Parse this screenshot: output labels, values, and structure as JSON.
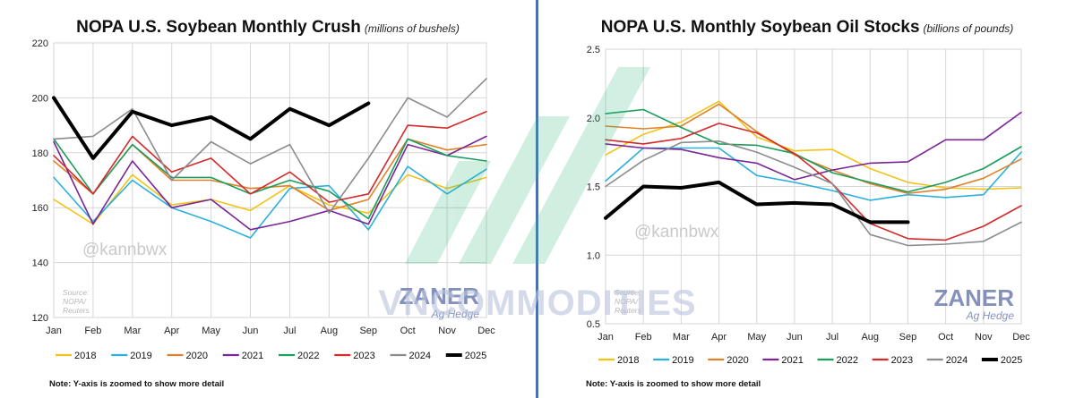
{
  "watermark": {
    "center_text": "VNCOMMODITIES"
  },
  "chart_data": [
    {
      "type": "line",
      "title": "NOPA U.S. Soybean Monthly Crush",
      "subtitle": "(millions of bushels)",
      "categories": [
        "Jan",
        "Feb",
        "Mar",
        "Apr",
        "May",
        "Jun",
        "Jul",
        "Aug",
        "Sep",
        "Oct",
        "Nov",
        "Dec"
      ],
      "ylim": [
        120,
        220
      ],
      "yticks": [
        "120",
        "140",
        "160",
        "180",
        "200",
        "220"
      ],
      "grid": true,
      "legend_position": "bottom",
      "handle": "@kannbwx",
      "source": [
        "Source:",
        "NOPA/",
        "Reuters"
      ],
      "brand": "ZANER",
      "brand_sub": "Ag Hedge",
      "note": "Note: Y-axis is zoomed to show more detail",
      "series": [
        {
          "name": "2018",
          "color": "#f2c317",
          "width": 1.6,
          "values": [
            163,
            154,
            172,
            161,
            163,
            159,
            168,
            161,
            158,
            172,
            167,
            171
          ]
        },
        {
          "name": "2019",
          "color": "#2ab0df",
          "width": 1.6,
          "values": [
            171,
            155,
            170,
            160,
            155,
            149,
            167,
            168,
            152,
            175,
            165,
            174
          ]
        },
        {
          "name": "2020",
          "color": "#e0802a",
          "width": 1.6,
          "values": [
            177,
            165,
            183,
            170,
            170,
            167,
            168,
            159,
            163,
            185,
            181,
            183
          ]
        },
        {
          "name": "2021",
          "color": "#7a2597",
          "width": 1.6,
          "values": [
            184,
            154,
            177,
            160,
            163,
            152,
            155,
            159,
            154,
            183,
            179,
            186
          ]
        },
        {
          "name": "2022",
          "color": "#1a9e5c",
          "width": 1.6,
          "values": [
            185,
            165,
            183,
            171,
            171,
            165,
            170,
            166,
            156,
            185,
            179,
            177
          ]
        },
        {
          "name": "2023",
          "color": "#d42a2a",
          "width": 1.6,
          "values": [
            179,
            165,
            186,
            173,
            178,
            165,
            173,
            162,
            165,
            190,
            189,
            195
          ]
        },
        {
          "name": "2024",
          "color": "#8c8c8c",
          "width": 1.6,
          "values": [
            185,
            186,
            196,
            170,
            184,
            176,
            183,
            158,
            178,
            200,
            193,
            207
          ]
        },
        {
          "name": "2025",
          "color": "#000000",
          "width": 4,
          "values": [
            200,
            178,
            195,
            190,
            193,
            185,
            196,
            190,
            198,
            null,
            null,
            null
          ]
        }
      ]
    },
    {
      "type": "line",
      "title": "NOPA U.S. Monthly Soybean Oil Stocks",
      "subtitle": "(billions of pounds)",
      "categories": [
        "Jan",
        "Feb",
        "Mar",
        "Apr",
        "May",
        "Jun",
        "Jul",
        "Aug",
        "Sep",
        "Oct",
        "Nov",
        "Dec"
      ],
      "ylim": [
        0.5,
        2.5
      ],
      "yticks": [
        "0.5",
        "1.0",
        "1.5",
        "2.0",
        "2.5"
      ],
      "grid": true,
      "legend_position": "bottom",
      "handle": "@kannbwx",
      "source": [
        "Source:",
        "NOPA/",
        "Reuters"
      ],
      "brand": "ZANER",
      "brand_sub": "Ag Hedge",
      "note": "Note: Y-axis is zoomed to show more detail",
      "series": [
        {
          "name": "2018",
          "color": "#f2c317",
          "width": 1.6,
          "values": [
            1.73,
            1.88,
            1.97,
            2.12,
            1.86,
            1.76,
            1.77,
            1.63,
            1.53,
            1.49,
            1.48,
            1.49
          ]
        },
        {
          "name": "2019",
          "color": "#2ab0df",
          "width": 1.6,
          "values": [
            1.54,
            1.78,
            1.78,
            1.78,
            1.58,
            1.53,
            1.47,
            1.4,
            1.44,
            1.42,
            1.44,
            1.75
          ]
        },
        {
          "name": "2020",
          "color": "#e0802a",
          "width": 1.6,
          "values": [
            1.94,
            1.92,
            1.94,
            2.1,
            1.9,
            1.73,
            1.62,
            1.52,
            1.45,
            1.48,
            1.56,
            1.7
          ]
        },
        {
          "name": "2021",
          "color": "#7a2597",
          "width": 1.6,
          "values": [
            1.81,
            1.78,
            1.77,
            1.71,
            1.67,
            1.55,
            1.62,
            1.67,
            1.68,
            1.84,
            1.84,
            2.04
          ]
        },
        {
          "name": "2022",
          "color": "#1a9e5c",
          "width": 1.6,
          "values": [
            2.03,
            2.06,
            1.93,
            1.81,
            1.8,
            1.74,
            1.6,
            1.53,
            1.46,
            1.53,
            1.63,
            1.79
          ]
        },
        {
          "name": "2023",
          "color": "#d42a2a",
          "width": 1.6,
          "values": [
            1.84,
            1.81,
            1.85,
            1.96,
            1.89,
            1.74,
            1.52,
            1.23,
            1.12,
            1.11,
            1.21,
            1.36
          ]
        },
        {
          "name": "2024",
          "color": "#8c8c8c",
          "width": 1.6,
          "values": [
            1.5,
            1.69,
            1.82,
            1.83,
            1.75,
            1.64,
            1.52,
            1.15,
            1.07,
            1.08,
            1.1,
            1.24
          ]
        },
        {
          "name": "2025",
          "color": "#000000",
          "width": 4,
          "values": [
            1.27,
            1.5,
            1.49,
            1.53,
            1.37,
            1.38,
            1.37,
            1.24,
            1.24,
            null,
            null,
            null
          ]
        }
      ]
    }
  ]
}
